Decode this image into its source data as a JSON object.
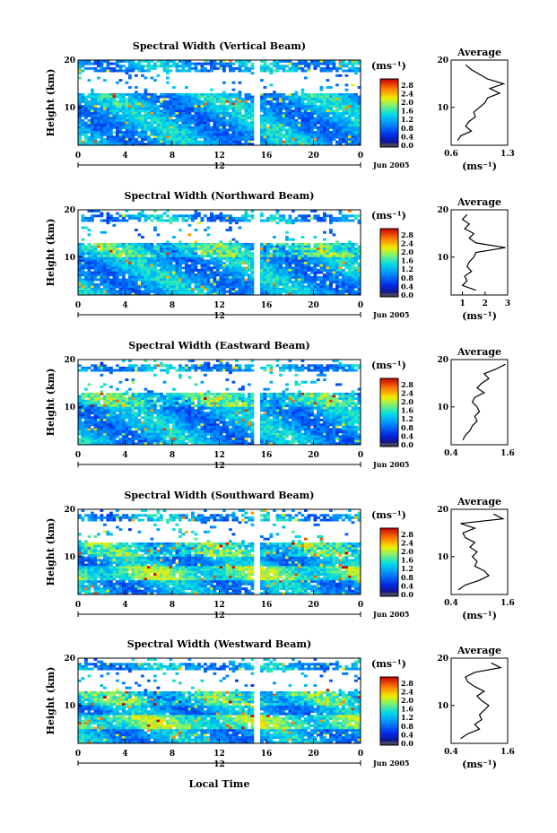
{
  "figure": {
    "xlabel": "Local Time",
    "date_label": "Jun 2005",
    "colorbar_unit": "(ms⁻¹)",
    "avg_title": "Average",
    "ylabel": "Height (km)"
  },
  "colorbar": {
    "ticks": [
      "2.8",
      "2.4",
      "2.0",
      "1.6",
      "1.2",
      "0.8",
      "0.4",
      "0.0"
    ],
    "range": [
      0.0,
      3.0
    ]
  },
  "chart_data": [
    {
      "type": "heatmap",
      "title": "Spectral Width (Vertical Beam)",
      "xlabel": "Local Time",
      "ylabel": "Height (km)",
      "xlim": [
        0,
        24
      ],
      "ylim": [
        2,
        20
      ],
      "x_ticks": [
        "0",
        "4",
        "8",
        "12",
        "16",
        "20",
        "0"
      ],
      "x_sub_tick": "12",
      "y_ticks": [
        "20",
        "10"
      ],
      "clim": [
        0,
        3
      ],
      "gap": [
        14.9,
        15.4
      ],
      "avg_profile": {
        "xlabel": "(ms⁻¹)",
        "xlim": [
          0.6,
          1.3
        ],
        "x_ticks": [
          "0.6",
          "1.3"
        ],
        "y_ticks": [
          "20",
          "10"
        ],
        "heights": [
          3,
          4,
          5,
          6,
          7,
          8,
          9,
          10,
          11,
          12,
          13,
          14,
          15,
          16,
          17,
          18,
          19
        ],
        "values": [
          0.68,
          0.72,
          0.85,
          0.78,
          0.82,
          0.9,
          0.88,
          0.95,
          1.02,
          1.05,
          1.2,
          1.08,
          1.25,
          1.05,
          0.95,
          0.85,
          0.78
        ]
      }
    },
    {
      "type": "heatmap",
      "title": "Spectral Width (Northward Beam)",
      "xlabel": "Local Time",
      "ylabel": "Height (km)",
      "xlim": [
        0,
        24
      ],
      "ylim": [
        2,
        20
      ],
      "x_ticks": [
        "0",
        "4",
        "8",
        "12",
        "16",
        "20",
        "0"
      ],
      "x_sub_tick": "12",
      "y_ticks": [
        "20",
        "10"
      ],
      "clim": [
        0,
        3
      ],
      "gap": [
        14.9,
        15.4
      ],
      "avg_profile": {
        "xlabel": "(ms⁻¹)",
        "xlim": [
          0.5,
          3.0
        ],
        "x_ticks": [
          "1",
          "2",
          "3"
        ],
        "y_ticks": [
          "20",
          "10"
        ],
        "heights": [
          3,
          4,
          5,
          6,
          7,
          8,
          9,
          10,
          11,
          12,
          13,
          14,
          15,
          16,
          17,
          18,
          19
        ],
        "values": [
          1.6,
          1.0,
          1.2,
          1.1,
          1.4,
          1.2,
          1.3,
          1.5,
          1.6,
          2.9,
          1.6,
          1.3,
          1.5,
          1.1,
          1.3,
          1.0,
          1.2
        ]
      }
    },
    {
      "type": "heatmap",
      "title": "Spectral Width (Eastward Beam)",
      "xlabel": "Local Time",
      "ylabel": "Height (km)",
      "xlim": [
        0,
        24
      ],
      "ylim": [
        2,
        20
      ],
      "x_ticks": [
        "0",
        "4",
        "8",
        "12",
        "16",
        "20",
        "0"
      ],
      "x_sub_tick": "12",
      "y_ticks": [
        "20",
        "10"
      ],
      "clim": [
        0,
        3
      ],
      "gap": [
        14.9,
        15.4
      ],
      "avg_profile": {
        "xlabel": "",
        "xlim": [
          0.4,
          1.6
        ],
        "x_ticks": [
          "0.4",
          "1.6"
        ],
        "y_ticks": [
          "20",
          "10"
        ],
        "heights": [
          3,
          4,
          5,
          6,
          7,
          8,
          9,
          10,
          11,
          12,
          13,
          14,
          15,
          16,
          17,
          18,
          19
        ],
        "values": [
          0.65,
          0.7,
          0.8,
          0.85,
          0.95,
          0.9,
          1.0,
          0.95,
          0.85,
          0.9,
          1.1,
          0.95,
          1.05,
          1.2,
          1.1,
          1.35,
          1.55
        ]
      }
    },
    {
      "type": "heatmap",
      "title": "Spectral Width (Southward Beam)",
      "xlabel": "Local Time",
      "ylabel": "Height (km)",
      "xlim": [
        0,
        24
      ],
      "ylim": [
        2,
        20
      ],
      "x_ticks": [
        "0",
        "4",
        "8",
        "12",
        "16",
        "20",
        "0"
      ],
      "x_sub_tick": "12",
      "y_ticks": [
        "20",
        "10"
      ],
      "clim": [
        0,
        3
      ],
      "gap": [
        14.9,
        15.4
      ],
      "avg_profile": {
        "xlabel": "(ms⁻¹)",
        "xlim": [
          0.4,
          1.6
        ],
        "x_ticks": [
          "0.4",
          "1.6"
        ],
        "y_ticks": [
          "20",
          "10"
        ],
        "heights": [
          3,
          4,
          5,
          6,
          7,
          8,
          9,
          10,
          11,
          12,
          13,
          14,
          15,
          16,
          17,
          18,
          19
        ],
        "values": [
          0.55,
          0.7,
          1.0,
          1.2,
          1.1,
          0.9,
          0.95,
          0.85,
          0.95,
          0.8,
          0.9,
          0.7,
          0.65,
          0.9,
          0.6,
          1.5,
          1.3
        ]
      }
    },
    {
      "type": "heatmap",
      "title": "Spectral Width (Westward Beam)",
      "xlabel": "Local Time",
      "ylabel": "Height (km)",
      "xlim": [
        0,
        24
      ],
      "ylim": [
        2,
        20
      ],
      "x_ticks": [
        "0",
        "4",
        "8",
        "12",
        "16",
        "20",
        "0"
      ],
      "x_sub_tick": "12",
      "y_ticks": [
        "20",
        "10"
      ],
      "clim": [
        0,
        3
      ],
      "gap": [
        14.9,
        15.4
      ],
      "avg_profile": {
        "xlabel": "(ms⁻¹)",
        "xlim": [
          0.4,
          1.6
        ],
        "x_ticks": [
          "0.4",
          "1.6"
        ],
        "y_ticks": [
          "20",
          "10"
        ],
        "heights": [
          3,
          4,
          5,
          6,
          7,
          8,
          9,
          10,
          11,
          12,
          13,
          14,
          15,
          16,
          17,
          18,
          19
        ],
        "values": [
          0.6,
          0.75,
          1.0,
          0.9,
          1.05,
          1.0,
          1.1,
          1.2,
          1.05,
          0.95,
          1.1,
          0.9,
          0.75,
          0.7,
          0.9,
          1.45,
          1.25
        ]
      }
    }
  ]
}
